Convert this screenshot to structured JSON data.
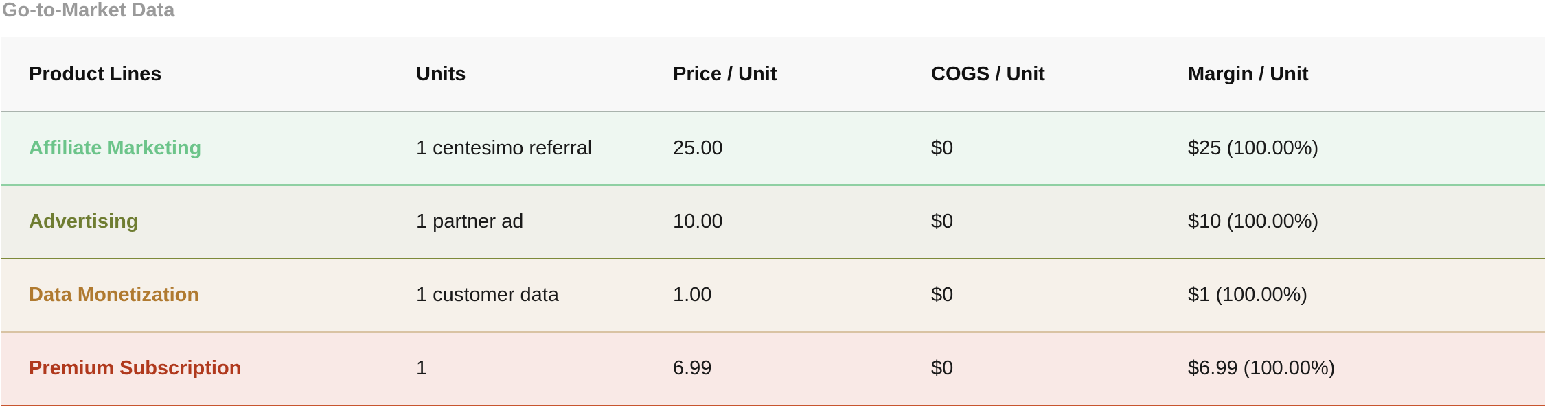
{
  "section_title": "Go-to-Market Data",
  "table": {
    "headers": [
      "Product Lines",
      "Units",
      "Price / Unit",
      "COGS / Unit",
      "Margin / Unit"
    ],
    "rows": [
      {
        "name": "Affiliate Marketing",
        "units": "1 centesimo referral",
        "price": "25.00",
        "cogs": "$0",
        "margin": "$25 (100.00%)",
        "name_color": "#6cc48a",
        "bg_color": "#eef7f1",
        "border_color": "#8fd0a3"
      },
      {
        "name": "Advertising",
        "units": "1 partner ad",
        "price": "10.00",
        "cogs": "$0",
        "margin": "$10 (100.00%)",
        "name_color": "#6f7d32",
        "bg_color": "#f0f0ea",
        "border_color": "#7d8a3a"
      },
      {
        "name": "Data Monetization",
        "units": "1 customer data",
        "price": "1.00",
        "cogs": "$0",
        "margin": "$1 (100.00%)",
        "name_color": "#b07a30",
        "bg_color": "#f6f1ea",
        "border_color": "#d9c3a3"
      },
      {
        "name": "Premium Subscription",
        "units": "1",
        "price": "6.99",
        "cogs": "$0",
        "margin": "$6.99 (100.00%)",
        "name_color": "#b0391d",
        "bg_color": "#f9e9e6",
        "border_color": "#c8552f"
      }
    ]
  }
}
